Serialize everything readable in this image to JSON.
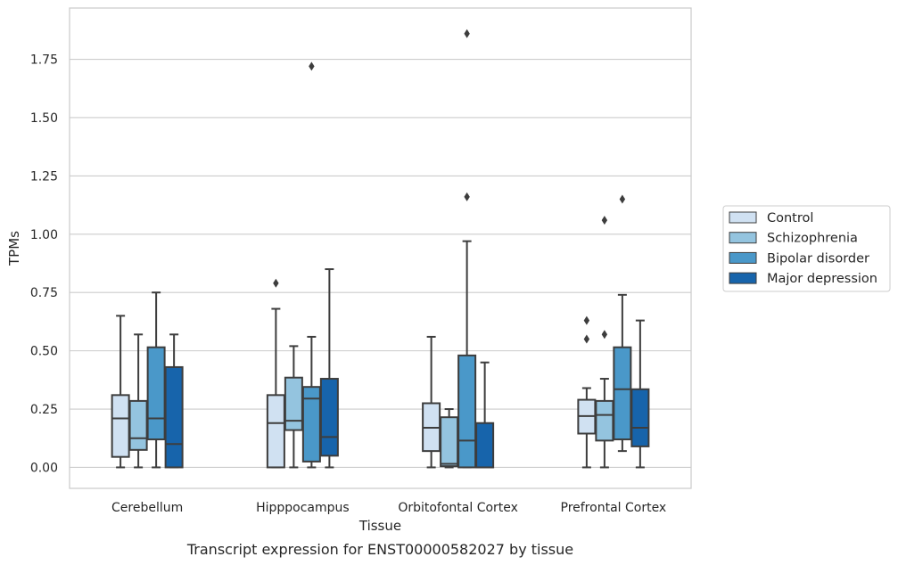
{
  "caption": "Transcript expression for ENST00000582027 by tissue",
  "chart_data": {
    "type": "box",
    "xlabel": "Tissue",
    "ylabel": "TPMs",
    "ylim": [
      -0.09,
      1.97
    ],
    "yticks": [
      0.0,
      0.25,
      0.5,
      0.75,
      1.0,
      1.25,
      1.5,
      1.75
    ],
    "ytick_labels": [
      "0.00",
      "0.25",
      "0.50",
      "0.75",
      "1.00",
      "1.25",
      "1.50",
      "1.75"
    ],
    "grid": "horizontal",
    "legend_position": "right",
    "categories": [
      "Cerebellum",
      "Hipppocampus",
      "Orbitofontal Cortex",
      "Prefrontal Cortex"
    ],
    "series": [
      {
        "name": "Control",
        "color": "#d0e1f2",
        "boxes": [
          {
            "whisker_low": 0.0,
            "q1": 0.045,
            "median": 0.21,
            "q3": 0.31,
            "whisker_high": 0.65,
            "outliers": []
          },
          {
            "whisker_low": 0.0,
            "q1": 0.0,
            "median": 0.19,
            "q3": 0.31,
            "whisker_high": 0.68,
            "outliers": [
              0.79
            ]
          },
          {
            "whisker_low": 0.0,
            "q1": 0.07,
            "median": 0.17,
            "q3": 0.275,
            "whisker_high": 0.56,
            "outliers": []
          },
          {
            "whisker_low": 0.0,
            "q1": 0.145,
            "median": 0.22,
            "q3": 0.29,
            "whisker_high": 0.34,
            "outliers": [
              0.55,
              0.63
            ]
          }
        ]
      },
      {
        "name": "Schizophrenia",
        "color": "#94c4df",
        "boxes": [
          {
            "whisker_low": 0.0,
            "q1": 0.075,
            "median": 0.125,
            "q3": 0.285,
            "whisker_high": 0.57,
            "outliers": []
          },
          {
            "whisker_low": 0.0,
            "q1": 0.16,
            "median": 0.2,
            "q3": 0.385,
            "whisker_high": 0.52,
            "outliers": []
          },
          {
            "whisker_low": 0.0,
            "q1": 0.005,
            "median": 0.015,
            "q3": 0.215,
            "whisker_high": 0.25,
            "outliers": []
          },
          {
            "whisker_low": 0.0,
            "q1": 0.115,
            "median": 0.225,
            "q3": 0.285,
            "whisker_high": 0.38,
            "outliers": [
              0.57,
              1.06
            ]
          }
        ]
      },
      {
        "name": "Bipolar disorder",
        "color": "#4a98c9",
        "boxes": [
          {
            "whisker_low": 0.0,
            "q1": 0.12,
            "median": 0.21,
            "q3": 0.515,
            "whisker_high": 0.75,
            "outliers": []
          },
          {
            "whisker_low": 0.0,
            "q1": 0.025,
            "median": 0.295,
            "q3": 0.345,
            "whisker_high": 0.56,
            "outliers": [
              1.72
            ]
          },
          {
            "whisker_low": 0.0,
            "q1": 0.0,
            "median": 0.115,
            "q3": 0.48,
            "whisker_high": 0.97,
            "outliers": [
              1.16,
              1.86
            ]
          },
          {
            "whisker_low": 0.07,
            "q1": 0.12,
            "median": 0.335,
            "q3": 0.515,
            "whisker_high": 0.74,
            "outliers": [
              1.15
            ]
          }
        ]
      },
      {
        "name": "Major depression",
        "color": "#1764ab",
        "boxes": [
          {
            "whisker_low": 0.0,
            "q1": 0.0,
            "median": 0.1,
            "q3": 0.43,
            "whisker_high": 0.57,
            "outliers": []
          },
          {
            "whisker_low": 0.0,
            "q1": 0.05,
            "median": 0.13,
            "q3": 0.38,
            "whisker_high": 0.85,
            "outliers": []
          },
          {
            "whisker_low": 0.0,
            "q1": 0.0,
            "median": 0.0,
            "q3": 0.19,
            "whisker_high": 0.45,
            "outliers": []
          },
          {
            "whisker_low": 0.0,
            "q1": 0.09,
            "median": 0.17,
            "q3": 0.335,
            "whisker_high": 0.63,
            "outliers": []
          }
        ]
      }
    ]
  }
}
